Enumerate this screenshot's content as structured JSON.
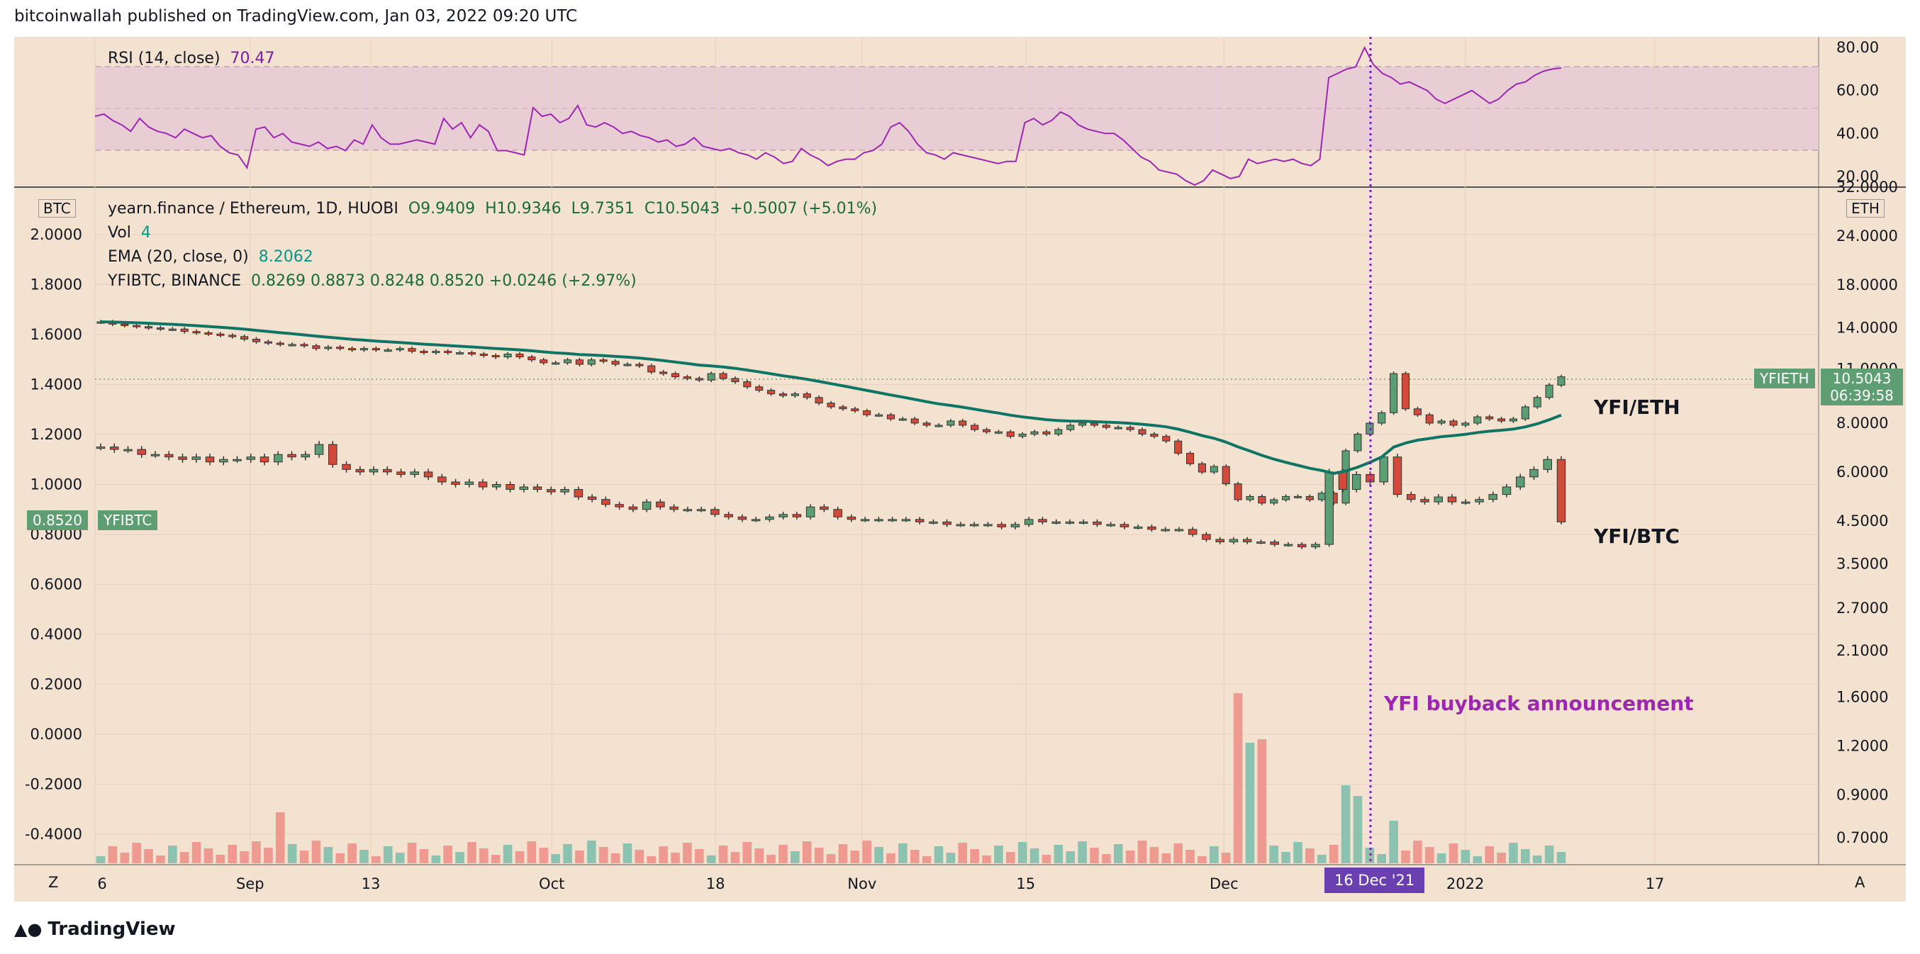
{
  "header": "bitcoinwallah published on TradingView.com, Jan 03, 2022 09:20 UTC",
  "footer": {
    "logo_text": "TradingView",
    "logo_icon": "tradingview-logo-icon"
  },
  "colors": {
    "background": "#f2e2cf",
    "up": "#26a69a",
    "up_body": "#5c9e74",
    "down": "#d24a3a",
    "ema": "#0e7463",
    "rsi": "#9c27b0",
    "rsi_band": "#e7c9d6",
    "vol_up": "#8cc2b0",
    "vol_down": "#ef9a91",
    "annotation": "#9c27b0",
    "tag_green": "#5f9e72"
  },
  "legend": {
    "main_line": "yearn.finance / Ethereum, 1D, HUOBI",
    "main_o": "O9.9409",
    "main_h": "H10.9346",
    "main_l": "L9.7351",
    "main_c": "C10.5043",
    "main_chg": "+0.5007 (+5.01%)",
    "vol_label": "Vol",
    "vol_value": "4",
    "ema_label": "EMA (20, close, 0)",
    "ema_value": "8.2062",
    "cmp_label": "YFIBTC, BINANCE",
    "cmp_values": "0.8269  0.8873  0.8248  0.8520  +0.0246 (+2.97%)",
    "rsi_label": "RSI (14, close)",
    "rsi_value": "70.47"
  },
  "axes": {
    "left_currency": "BTC",
    "right_currency": "ETH",
    "scale_left_btn": "Z",
    "scale_right_btn": "A",
    "left_ticks": [
      "2.0000",
      "1.8000",
      "1.6000",
      "1.4000",
      "1.2000",
      "1.0000",
      "0.8000",
      "0.6000",
      "0.4000",
      "0.2000",
      "0.0000",
      "-0.2000",
      "-0.4000"
    ],
    "right_ticks": [
      "32.0000",
      "24.0000",
      "18.0000",
      "14.0000",
      "11.0000",
      "8.0000",
      "6.0000",
      "4.5000",
      "3.5000",
      "2.7000",
      "2.1000",
      "1.6000",
      "1.2000",
      "0.9000",
      "0.7000"
    ],
    "rsi_ticks": [
      "80.00",
      "60.00",
      "40.00",
      "20.00"
    ],
    "x_ticks": [
      "6",
      "Sep",
      "13",
      "Oct",
      "18",
      "Nov",
      "15",
      "Dec",
      "2022",
      "17"
    ],
    "x_highlight": "16 Dec '21"
  },
  "tags": {
    "price_symbol": "YFIETH",
    "price_value": "10.5043",
    "countdown": "06:39:58",
    "cmp_value": "0.8520",
    "cmp_symbol": "YFIBTC"
  },
  "annotations": {
    "pair1": "YFI/ETH",
    "pair2": "YFI/BTC",
    "event": "YFI buyback announcement"
  },
  "chart_data": {
    "type": "candlestick",
    "x_start": "2021-08-06",
    "x_end": "2022-01-03",
    "event_date": "2021-12-16",
    "series": [
      {
        "name": "yearn.finance / Ethereum",
        "axis": "right",
        "close_approx": [
          14.5,
          14.3,
          14.2,
          14.1,
          14.0,
          13.9,
          13.9,
          13.7,
          13.6,
          13.5,
          13.4,
          13.3,
          13.1,
          12.9,
          12.8,
          12.7,
          12.7,
          12.6,
          12.4,
          12.5,
          12.4,
          12.3,
          12.4,
          12.3,
          12.3,
          12.4,
          12.2,
          12.1,
          12.2,
          12.1,
          12.1,
          12.0,
          11.9,
          11.8,
          12.0,
          11.8,
          11.6,
          11.4,
          11.4,
          11.6,
          11.3,
          11.6,
          11.5,
          11.3,
          11.3,
          11.2,
          10.8,
          10.7,
          10.5,
          10.4,
          10.3,
          10.7,
          10.4,
          10.2,
          9.9,
          9.7,
          9.5,
          9.4,
          9.5,
          9.3,
          9.0,
          8.8,
          8.7,
          8.6,
          8.4,
          8.4,
          8.2,
          8.2,
          8.0,
          7.9,
          7.9,
          8.1,
          7.9,
          7.7,
          7.6,
          7.6,
          7.4,
          7.5,
          7.6,
          7.5,
          7.7,
          7.9,
          8.0,
          7.9,
          7.8,
          7.8,
          7.7,
          7.5,
          7.4,
          7.2,
          6.7,
          6.3,
          6.0,
          6.2,
          5.6,
          5.1,
          5.2,
          5.0,
          5.1,
          5.2,
          5.2,
          5.1,
          5.3,
          5.0,
          6.8,
          7.5,
          8.0,
          8.5,
          10.7,
          8.7,
          8.4,
          8.0,
          8.1,
          7.9,
          8.0,
          8.3,
          8.2,
          8.1,
          8.2,
          8.8,
          9.3,
          10.0,
          10.5
        ]
      },
      {
        "name": "YFIBTC, BINANCE",
        "axis": "left",
        "close_approx": [
          1.15,
          1.14,
          1.14,
          1.12,
          1.12,
          1.11,
          1.1,
          1.11,
          1.09,
          1.1,
          1.1,
          1.11,
          1.09,
          1.12,
          1.11,
          1.12,
          1.16,
          1.08,
          1.06,
          1.05,
          1.06,
          1.05,
          1.04,
          1.05,
          1.03,
          1.01,
          1.0,
          1.01,
          0.99,
          1.0,
          0.98,
          0.99,
          0.98,
          0.97,
          0.98,
          0.95,
          0.94,
          0.92,
          0.91,
          0.9,
          0.93,
          0.91,
          0.9,
          0.9,
          0.9,
          0.88,
          0.87,
          0.86,
          0.86,
          0.87,
          0.88,
          0.87,
          0.91,
          0.9,
          0.87,
          0.86,
          0.86,
          0.86,
          0.86,
          0.86,
          0.85,
          0.85,
          0.84,
          0.84,
          0.84,
          0.84,
          0.83,
          0.84,
          0.86,
          0.85,
          0.85,
          0.85,
          0.85,
          0.84,
          0.84,
          0.83,
          0.83,
          0.82,
          0.82,
          0.82,
          0.8,
          0.78,
          0.77,
          0.78,
          0.77,
          0.77,
          0.76,
          0.76,
          0.75,
          0.76,
          1.05,
          0.98,
          1.04,
          1.01,
          1.11,
          0.96,
          0.94,
          0.93,
          0.95,
          0.93,
          0.93,
          0.94,
          0.96,
          0.99,
          1.03,
          1.06,
          1.1,
          0.85
        ]
      },
      {
        "name": "EMA (20, close, 0)",
        "axis": "right"
      },
      {
        "name": "Vol",
        "axis": "volume"
      },
      {
        "name": "RSI (14, close)",
        "axis": "rsi",
        "values_approx": [
          48,
          49,
          46,
          44,
          41,
          47,
          43,
          41,
          40,
          38,
          42,
          40,
          38,
          39,
          34,
          31,
          30,
          24,
          42,
          43,
          38,
          40,
          36,
          35,
          34,
          36,
          33,
          34,
          32,
          37,
          35,
          44,
          38,
          35,
          35,
          36,
          37,
          36,
          35,
          47,
          42,
          45,
          38,
          44,
          41,
          32,
          32,
          31,
          30,
          52,
          48,
          49,
          45,
          47,
          53,
          44,
          43,
          45,
          43,
          40,
          41,
          39,
          38,
          36,
          37,
          34,
          35,
          38,
          34,
          33,
          32,
          33,
          31,
          30,
          28,
          31,
          29,
          26,
          27,
          33,
          30,
          28,
          25,
          27,
          28,
          28,
          31,
          32,
          35,
          43,
          45,
          41,
          35,
          31,
          30,
          28,
          31,
          30,
          29,
          28,
          27,
          26,
          27,
          27,
          45,
          47,
          44,
          46,
          50,
          48,
          44,
          42,
          41,
          40,
          40,
          37,
          33,
          29,
          27,
          23,
          22,
          21,
          18,
          16,
          18,
          23,
          21,
          19,
          20,
          28,
          26,
          27,
          28,
          27,
          28,
          26,
          25,
          28,
          66,
          68,
          70,
          71,
          80,
          72,
          68,
          66,
          63,
          64,
          62,
          60,
          56,
          54,
          56,
          58,
          60,
          57,
          54,
          56,
          60,
          63,
          64,
          67,
          69,
          70,
          70.47
        ]
      }
    ],
    "right_axis_range": [
      0.6,
      32
    ],
    "left_axis_range": [
      -0.5,
      2.1
    ],
    "rsi_range": [
      15,
      85
    ],
    "rsi_band": [
      30,
      70
    ]
  }
}
